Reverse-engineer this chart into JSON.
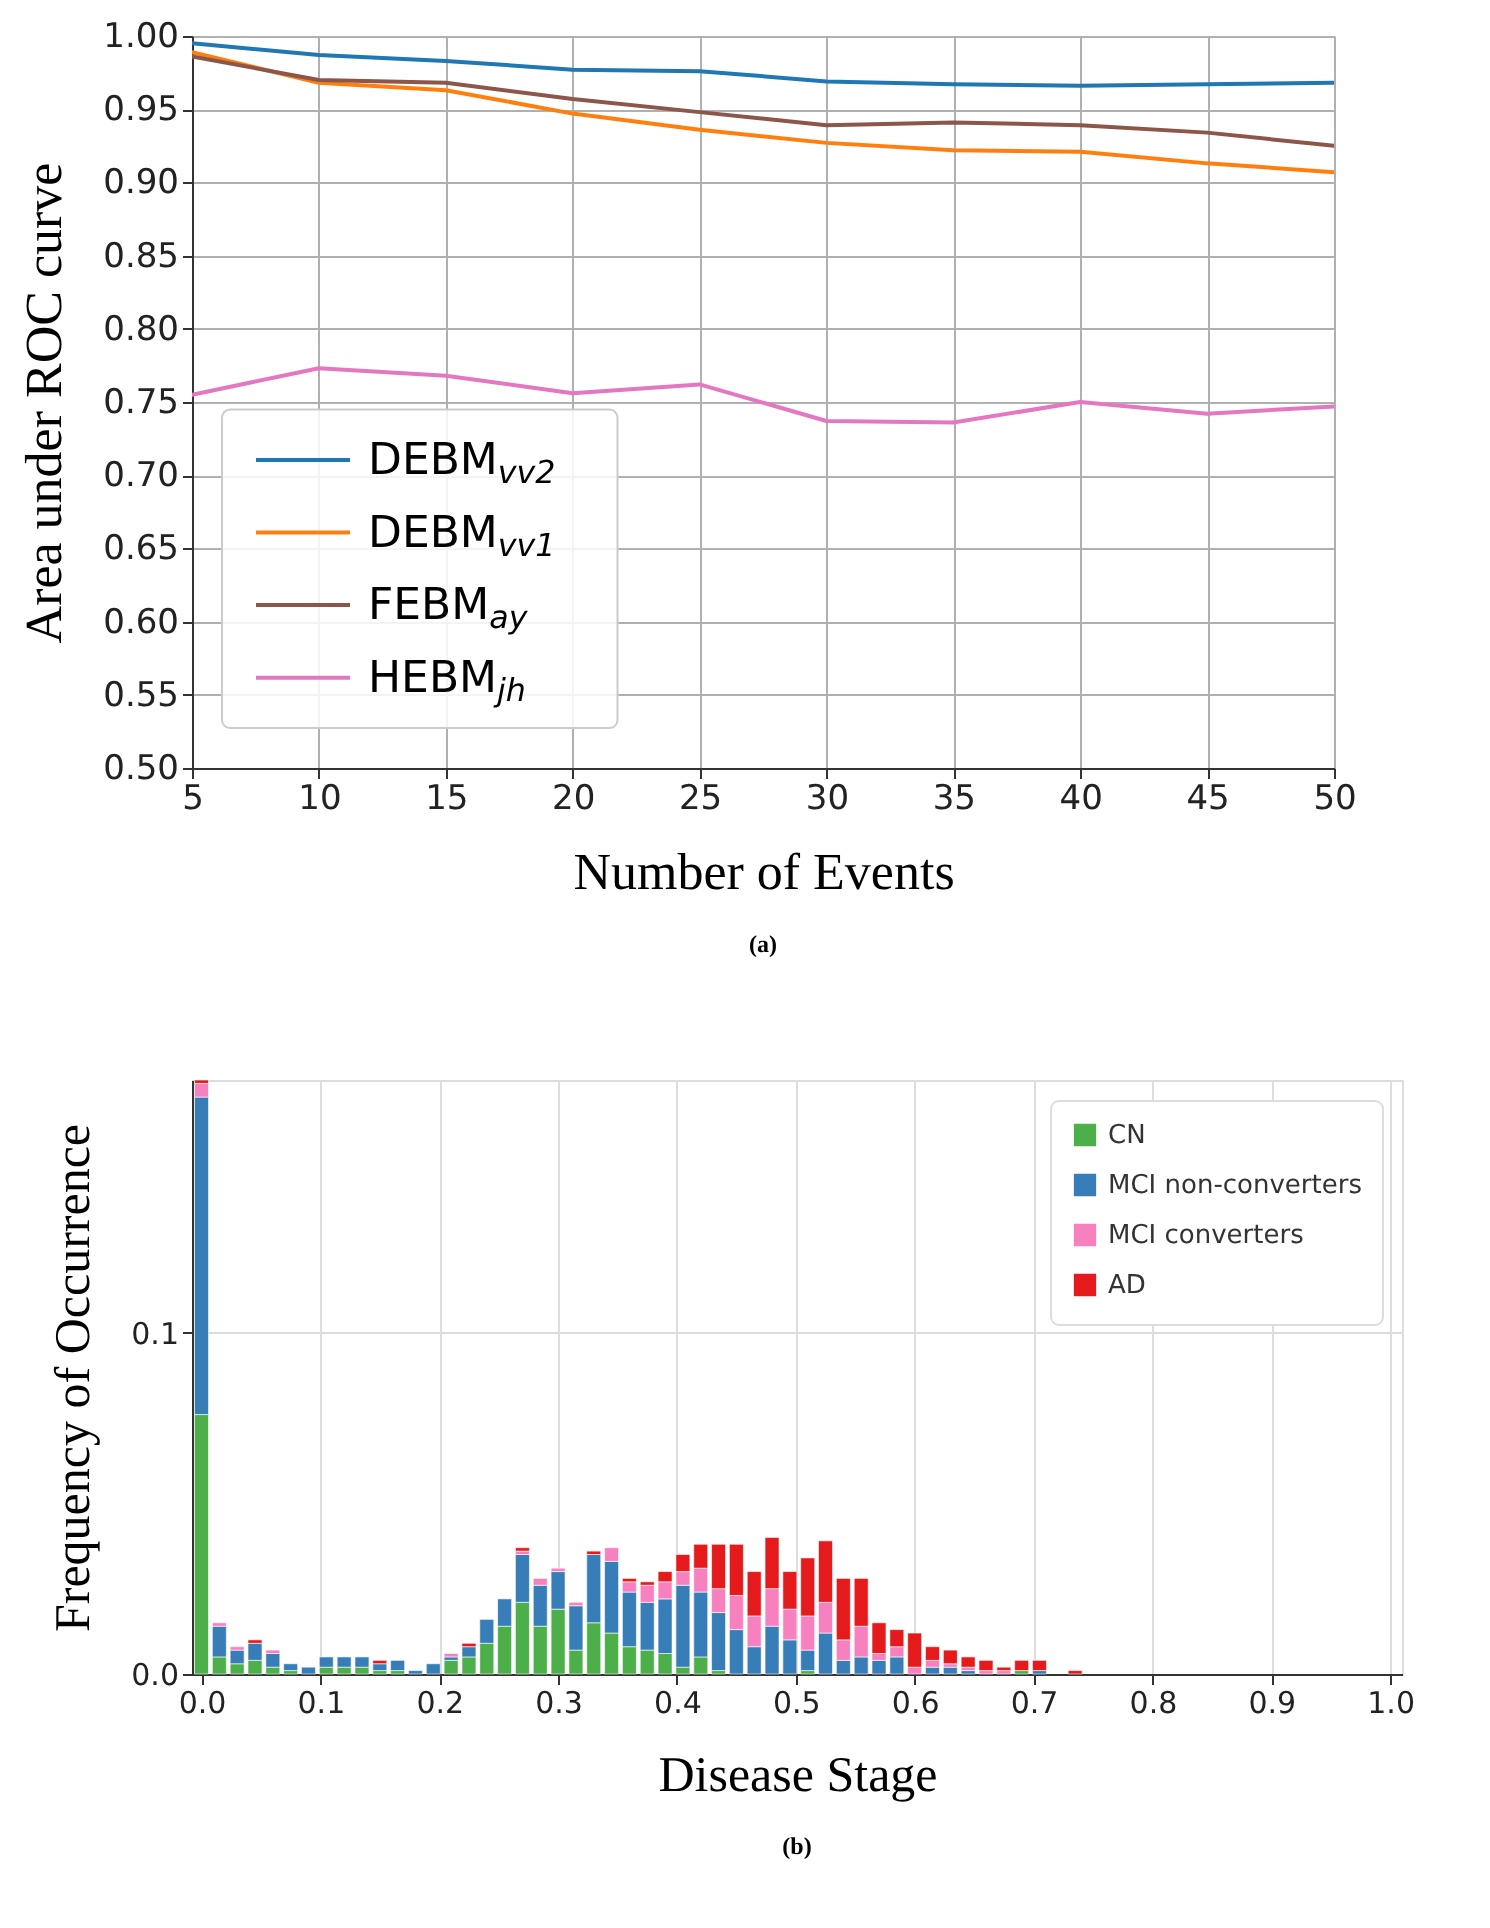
{
  "chart_data": [
    {
      "type": "line",
      "xlabel": "Number of Events",
      "ylabel": "Area under ROC curve",
      "annotations": [
        "(a)"
      ],
      "x": [
        5,
        10,
        15,
        20,
        25,
        30,
        35,
        40,
        45,
        50
      ],
      "series": [
        {
          "name": "DEBM$_{vv2}$",
          "color": "#1f77b4",
          "values": [
            0.995,
            0.987,
            0.983,
            0.977,
            0.976,
            0.969,
            0.967,
            0.966,
            0.967,
            0.968
          ]
        },
        {
          "name": "DEBM$_{vv1}$",
          "color": "#ff7f0e",
          "values": [
            0.989,
            0.968,
            0.963,
            0.947,
            0.936,
            0.927,
            0.922,
            0.921,
            0.913,
            0.907
          ]
        },
        {
          "name": "FEBM$_{ay}$",
          "color": "#8c564b",
          "values": [
            0.986,
            0.97,
            0.968,
            0.957,
            0.948,
            0.939,
            0.941,
            0.939,
            0.934,
            0.925
          ]
        },
        {
          "name": "HEBM$_{jh}$",
          "color": "#e377c2",
          "values": [
            0.755,
            0.773,
            0.768,
            0.756,
            0.762,
            0.737,
            0.736,
            0.75,
            0.742,
            0.747
          ]
        }
      ],
      "xlim": [
        5,
        50
      ],
      "xticks": [
        5,
        10,
        15,
        20,
        25,
        30,
        35,
        40,
        45,
        50
      ],
      "ylim": [
        0.5,
        1.0
      ],
      "yticks": [
        {
          "value": 0.5,
          "label": "0.50"
        },
        {
          "value": 0.55,
          "label": "0.55"
        },
        {
          "value": 0.6,
          "label": "0.60"
        },
        {
          "value": 0.65,
          "label": "0.65"
        },
        {
          "value": 0.7,
          "label": "0.70"
        },
        {
          "value": 0.75,
          "label": "0.75"
        },
        {
          "value": 0.8,
          "label": "0.80"
        },
        {
          "value": 0.85,
          "label": "0.85"
        },
        {
          "value": 0.9,
          "label": "0.90"
        },
        {
          "value": 0.95,
          "label": "0.95"
        },
        {
          "value": 1.0,
          "label": "1.00"
        }
      ],
      "grid": true,
      "legend": "bottom left",
      "marker": "none",
      "line_style": "solid"
    },
    {
      "type": "bar",
      "stacked": true,
      "xlabel": "Disease Stage",
      "ylabel": "Frequency of Occurrence",
      "annotations": [
        "(b)"
      ],
      "x": [
        0,
        0.015,
        0.03,
        0.045,
        0.06,
        0.075,
        0.09,
        0.105,
        0.12,
        0.135,
        0.15,
        0.165,
        0.18,
        0.195,
        0.21,
        0.225,
        0.24,
        0.255,
        0.27,
        0.285,
        0.3,
        0.315,
        0.33,
        0.345,
        0.36,
        0.375,
        0.39,
        0.405,
        0.42,
        0.435,
        0.45,
        0.465,
        0.48,
        0.495,
        0.51,
        0.525,
        0.54,
        0.555,
        0.57,
        0.585,
        0.6,
        0.615,
        0.63,
        0.645,
        0.66,
        0.675,
        0.69,
        0.705,
        0.72,
        0.735
      ],
      "series": [
        {
          "name": "CN",
          "color": "#4daf4a",
          "values": [
            0.076,
            0.005,
            0.003,
            0.004,
            0.002,
            0.001,
            null,
            0.002,
            0.002,
            0.002,
            0.001,
            0.001,
            null,
            null,
            0.004,
            0.005,
            0.009,
            0.014,
            0.021,
            0.014,
            0.019,
            0.007,
            0.015,
            0.012,
            0.008,
            0.007,
            0.006,
            0.002,
            0.005,
            0.001,
            null,
            null,
            null,
            null,
            0.001,
            null,
            null,
            null,
            null,
            null,
            null,
            null,
            null,
            null,
            null,
            null,
            0.001,
            null,
            null,
            null
          ]
        },
        {
          "name": "MCI non-converters",
          "color": "#377eb8",
          "values": [
            0.093,
            0.009,
            0.004,
            0.005,
            0.004,
            0.002,
            0.002,
            0.003,
            0.003,
            0.003,
            0.002,
            0.003,
            0.001,
            0.003,
            0.001,
            0.003,
            0.007,
            0.008,
            0.014,
            0.012,
            0.011,
            0.013,
            0.02,
            0.021,
            0.016,
            0.014,
            0.016,
            0.024,
            0.019,
            0.017,
            0.013,
            0.008,
            0.014,
            0.01,
            0.006,
            0.012,
            0.004,
            0.005,
            0.004,
            0.005,
            null,
            0.002,
            0.002,
            0.001,
            null,
            null,
            null,
            0.001,
            null,
            null
          ]
        },
        {
          "name": "MCI converters",
          "color": "#f781bf",
          "values": [
            0.004,
            0.001,
            0.001,
            null,
            0.001,
            null,
            null,
            null,
            null,
            null,
            null,
            null,
            null,
            null,
            0.001,
            null,
            null,
            null,
            0.001,
            0.002,
            0.001,
            0.001,
            null,
            0.004,
            0.003,
            0.005,
            0.005,
            0.004,
            0.007,
            0.007,
            0.01,
            0.009,
            0.011,
            0.009,
            0.01,
            0.009,
            0.006,
            0.009,
            0.002,
            0.003,
            0.002,
            0.002,
            0.001,
            0.001,
            0.001,
            0.001,
            null,
            null,
            null,
            null
          ]
        },
        {
          "name": "AD",
          "color": "#e41a1c",
          "values": [
            0.001,
            null,
            null,
            0.001,
            null,
            null,
            null,
            null,
            null,
            null,
            0.001,
            null,
            null,
            null,
            null,
            0.001,
            null,
            null,
            0.001,
            null,
            null,
            null,
            0.001,
            null,
            0.001,
            0.001,
            0.003,
            0.005,
            0.007,
            0.013,
            0.015,
            0.013,
            0.015,
            0.011,
            0.017,
            0.018,
            0.018,
            0.014,
            0.009,
            0.005,
            0.01,
            0.004,
            0.004,
            0.003,
            0.003,
            0.001,
            0.003,
            0.003,
            null,
            0.001
          ]
        }
      ],
      "xlim": [
        -0.008,
        1.01
      ],
      "xticks": [
        {
          "value": 0,
          "label": "0.0"
        },
        0.1,
        0.2,
        0.3,
        0.4,
        0.5,
        0.6,
        0.7,
        0.8,
        0.9,
        {
          "value": 1,
          "label": "1.0"
        }
      ],
      "ylim": [
        0,
        0.174
      ],
      "yticks": [
        {
          "value": 0,
          "label": "0.0"
        },
        0.1
      ],
      "grid": true,
      "legend": "top right"
    }
  ]
}
